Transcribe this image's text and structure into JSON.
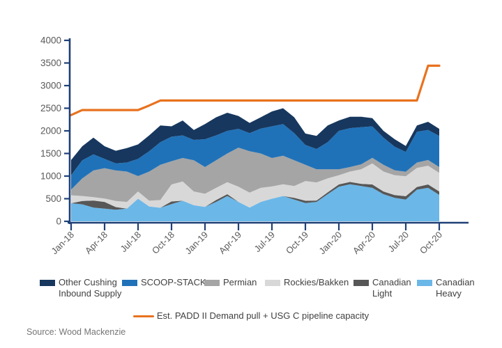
{
  "source_note": "Source: Wood Mackenzie",
  "colors": {
    "axis": "#1F3F77",
    "tick_label": "#595959",
    "legend_text": "#404040",
    "background": "#FFFFFF"
  },
  "legend": {
    "order": [
      "Other Cushing Inbound Supply",
      "SCOOP-STACK",
      "Permian",
      "Rockies/Bakken",
      "Canadian Light",
      "Canadian Heavy"
    ],
    "line_label": "Est. PADD II Demand pull + USG C pipeline capacity"
  },
  "chart_data": {
    "type": "area",
    "stacked": true,
    "title": "",
    "xlabel": "",
    "ylabel": "",
    "ylim": [
      0,
      4000
    ],
    "ytick_step": 500,
    "grid": false,
    "x": [
      "Jan-18",
      "Feb-18",
      "Mar-18",
      "Apr-18",
      "May-18",
      "Jun-18",
      "Jul-18",
      "Aug-18",
      "Sep-18",
      "Oct-18",
      "Nov-18",
      "Dec-18",
      "Jan-19",
      "Feb-19",
      "Mar-19",
      "Apr-19",
      "May-19",
      "Jun-19",
      "Jul-19",
      "Aug-19",
      "Sep-19",
      "Oct-19",
      "Nov-19",
      "Dec-19",
      "Jan-20",
      "Feb-20",
      "Mar-20",
      "Apr-20",
      "May-20",
      "Jun-20",
      "Jul-20",
      "Aug-20",
      "Sep-20",
      "Oct-20"
    ],
    "x_tick_every": 3,
    "series": [
      {
        "name": "Canadian Heavy",
        "color": "#6BB7E8",
        "values": [
          400,
          375,
          305,
          280,
          255,
          280,
          500,
          330,
          300,
          380,
          455,
          355,
          320,
          430,
          560,
          430,
          305,
          430,
          500,
          560,
          480,
          405,
          430,
          600,
          765,
          820,
          780,
          740,
          600,
          520,
          480,
          700,
          740,
          585
        ]
      },
      {
        "name": "Canadian Light",
        "color": "#575757",
        "values": [
          0,
          75,
          155,
          150,
          60,
          0,
          0,
          0,
          0,
          60,
          0,
          0,
          0,
          40,
          40,
          0,
          0,
          0,
          0,
          0,
          40,
          50,
          30,
          40,
          50,
          50,
          50,
          75,
          60,
          60,
          75,
          60,
          75,
          75
        ]
      },
      {
        "name": "Rockies/Bakken",
        "color": "#D8D8D8",
        "values": [
          175,
          110,
          75,
          75,
          135,
          150,
          160,
          125,
          170,
          375,
          425,
          305,
          290,
          270,
          265,
          335,
          330,
          310,
          270,
          260,
          260,
          435,
          400,
          310,
          205,
          230,
          320,
          465,
          440,
          440,
          440,
          420,
          415,
          410
        ]
      },
      {
        "name": "Permian",
        "color": "#A5A5A5",
        "values": [
          125,
          390,
          590,
          670,
          675,
          670,
          340,
          645,
          780,
          515,
          520,
          690,
          590,
          610,
          635,
          865,
          915,
          760,
          630,
          630,
          570,
          360,
          290,
          200,
          130,
          100,
          110,
          125,
          150,
          110,
          100,
          120,
          125,
          130
        ]
      },
      {
        "name": "SCOOP-STACK",
        "color": "#2072B8",
        "values": [
          320,
          400,
          355,
          205,
          155,
          200,
          380,
          450,
          500,
          540,
          500,
          450,
          615,
          550,
          500,
          415,
          400,
          550,
          700,
          700,
          600,
          440,
          450,
          600,
          850,
          860,
          820,
          695,
          600,
          520,
          440,
          680,
          665,
          690
        ]
      },
      {
        "name": "Other Cushing Inbound Supply",
        "color": "#17375E",
        "values": [
          335,
          310,
          370,
          280,
          280,
          320,
          320,
          350,
          370,
          230,
          330,
          220,
          335,
          400,
          400,
          285,
          225,
          250,
          330,
          350,
          350,
          250,
          290,
          370,
          230,
          250,
          230,
          180,
          150,
          165,
          130,
          140,
          180,
          155
        ]
      }
    ],
    "line_series": {
      "name": "Est. PADD II Demand pull + USG C pipeline capacity",
      "color": "#E8721F",
      "values": [
        2350,
        2460,
        2460,
        2460,
        2460,
        2460,
        2460,
        2560,
        2670,
        2670,
        2670,
        2670,
        2670,
        2670,
        2670,
        2670,
        2670,
        2670,
        2670,
        2670,
        2670,
        2670,
        2670,
        2670,
        2670,
        2670,
        2670,
        2670,
        2670,
        2670,
        2670,
        2670,
        3440,
        3440
      ]
    },
    "legend_position": "bottom"
  }
}
